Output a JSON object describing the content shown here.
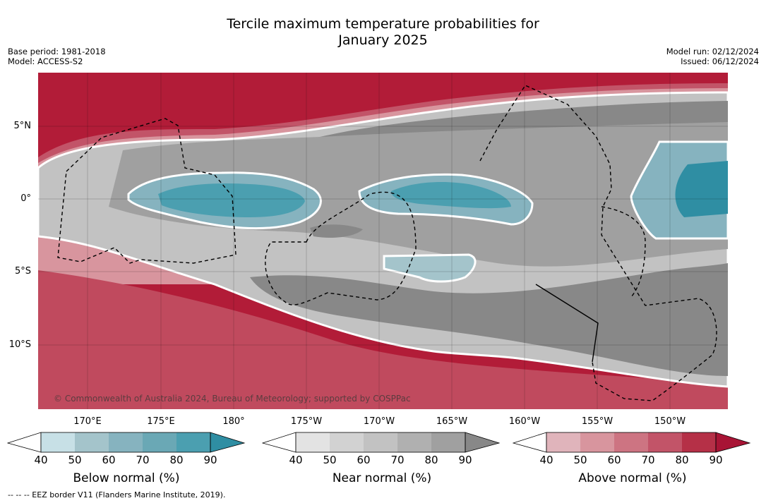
{
  "title": {
    "line1": "Tercile maximum temperature probabilities for",
    "line2": "January 2025"
  },
  "meta_left": {
    "base_period": "Base period: 1981-2018",
    "model": "Model: ACCESS-S2"
  },
  "meta_right": {
    "model_run": "Model run: 02/12/2024",
    "issued": "Issued: 06/12/2024"
  },
  "map": {
    "lat_labels": [
      "5°N",
      "0°",
      "5°S",
      "10°S"
    ],
    "lon_labels": [
      "170°E",
      "175°E",
      "180°",
      "175°W",
      "170°W",
      "165°W",
      "160°W",
      "155°W",
      "150°W"
    ],
    "copyright": "© Commonwealth of Australia 2024, Bureau of Meteorology; supported by COSPPac",
    "colors": {
      "above": [
        "#e0b4bb",
        "#d8959e",
        "#cd7482",
        "#c25468",
        "#b53047",
        "#a81435"
      ],
      "near": [
        "#e3e3e3",
        "#d2d2d2",
        "#c2c2c2",
        "#b0b0b0",
        "#a0a0a0",
        "#888888"
      ],
      "below": [
        "#c7e0e6",
        "#a4c4cb",
        "#86b3bf",
        "#6aa8b5",
        "#4b9fb0",
        "#2f8ea3"
      ]
    }
  },
  "legends": [
    {
      "id": "below",
      "title": "Below normal (%)",
      "ticks": [
        "40",
        "50",
        "60",
        "70",
        "80",
        "90"
      ],
      "colors": [
        "#c7e0e6",
        "#a4c4cb",
        "#86b3bf",
        "#6aa8b5",
        "#4b9fb0",
        "#2f8ea3"
      ]
    },
    {
      "id": "near",
      "title": "Near normal (%)",
      "ticks": [
        "40",
        "50",
        "60",
        "70",
        "80",
        "90"
      ],
      "colors": [
        "#e3e3e3",
        "#d2d2d2",
        "#c2c2c2",
        "#b0b0b0",
        "#a0a0a0",
        "#888888"
      ]
    },
    {
      "id": "above",
      "title": "Above normal (%)",
      "ticks": [
        "40",
        "50",
        "60",
        "70",
        "80",
        "90"
      ],
      "colors": [
        "#e0b4bb",
        "#d8959e",
        "#cd7482",
        "#c25468",
        "#b53047",
        "#a81435"
      ]
    }
  ],
  "footnote": "--  --  -- EEZ border V11 (Flanders Marine Institute, 2019)."
}
